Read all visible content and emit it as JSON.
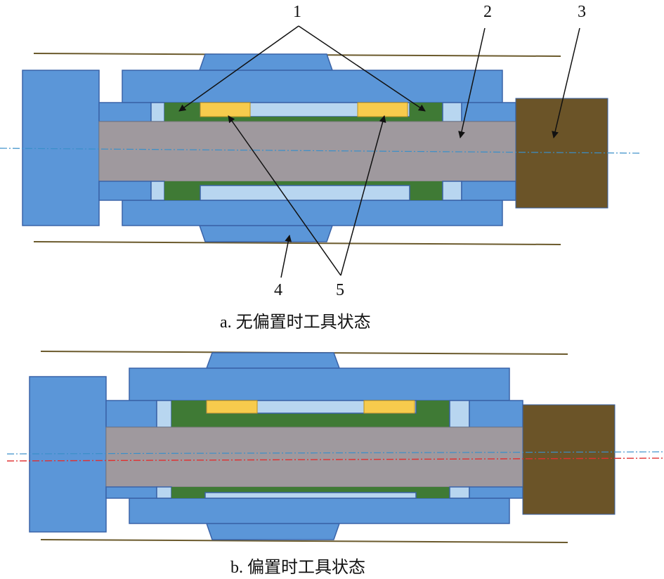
{
  "callouts": {
    "label_1": "1",
    "label_2": "2",
    "label_3": "3",
    "label_4": "4",
    "label_5": "5"
  },
  "captions": {
    "a": "a. 无偏置时工具状态",
    "b": "b. 偏置时工具状态"
  },
  "colors": {
    "housing_blue": "#5b96d8",
    "sleeve_light_blue": "#b8d6f0",
    "seal_green": "#3f7a35",
    "pad_yellow": "#f7cb4d",
    "shaft_gray": "#9f999e",
    "block_brown": "#6b5428",
    "wall_line": "#6b5a2c",
    "centerline_blue": "#3a8fc9",
    "centerline_red": "#e03030"
  },
  "icons": {
    "arrow": "arrowhead"
  }
}
